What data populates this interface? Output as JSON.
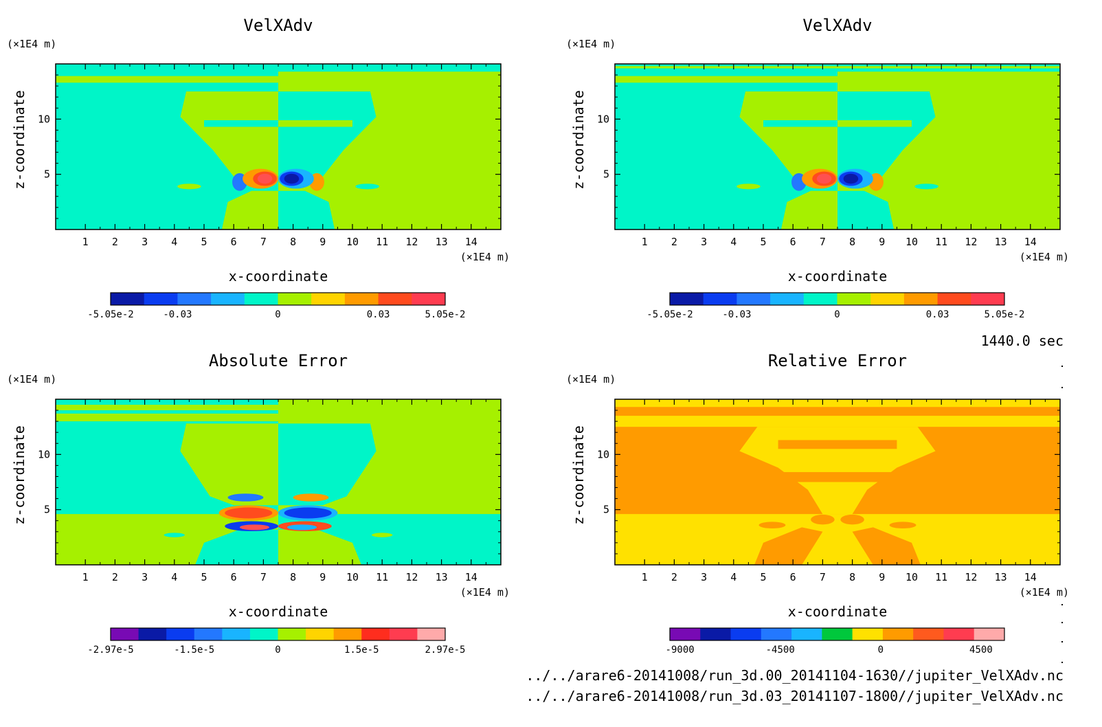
{
  "page": {
    "time_label": "1440.0 sec"
  },
  "files": [
    "../../arare6-20141008/run_3d.00_20141104-1630//jupiter_VelXAdv.nc",
    "../../arare6-20141008/run_3d.03_20141107-1800//jupiter_VelXAdv.nc"
  ],
  "chart_data": [
    {
      "type": "heatmap",
      "title": "VelXAdv",
      "xlabel": "x-coordinate",
      "ylabel": "z-coordinate",
      "x_unit": "(×1E4 m)",
      "y_unit": "(×1E4 m)",
      "xlim": [
        0,
        15
      ],
      "ylim": [
        0,
        15
      ],
      "x_ticks": [
        "1",
        "2",
        "3",
        "4",
        "5",
        "6",
        "7",
        "8",
        "9",
        "10",
        "11",
        "12",
        "13",
        "14"
      ],
      "y_ticks": [
        "5",
        "10"
      ],
      "colorbar": {
        "labels": [
          "-5.05e-2",
          "-0.03",
          "0",
          "0.03",
          "5.05e-2"
        ],
        "colors": [
          "#0a1aa6",
          "#0a3cf0",
          "#2378ff",
          "#19b4ff",
          "#00f5c8",
          "#a6f000",
          "#ffd400",
          "#ff9b00",
          "#ff4b1e",
          "#ff3c50"
        ]
      }
    },
    {
      "type": "heatmap",
      "title": "VelXAdv",
      "xlabel": "x-coordinate",
      "ylabel": "z-coordinate",
      "x_unit": "(×1E4 m)",
      "y_unit": "(×1E4 m)",
      "xlim": [
        0,
        15
      ],
      "ylim": [
        0,
        15
      ],
      "x_ticks": [
        "1",
        "2",
        "3",
        "4",
        "5",
        "6",
        "7",
        "8",
        "9",
        "10",
        "11",
        "12",
        "13",
        "14"
      ],
      "y_ticks": [
        "5",
        "10"
      ],
      "colorbar": {
        "labels": [
          "-5.05e-2",
          "-0.03",
          "0",
          "0.03",
          "5.05e-2"
        ],
        "colors": [
          "#0a1aa6",
          "#0a3cf0",
          "#2378ff",
          "#19b4ff",
          "#00f5c8",
          "#a6f000",
          "#ffd400",
          "#ff9b00",
          "#ff4b1e",
          "#ff3c50"
        ]
      }
    },
    {
      "type": "heatmap",
      "title": "Absolute Error",
      "xlabel": "x-coordinate",
      "ylabel": "z-coordinate",
      "x_unit": "(×1E4 m)",
      "y_unit": "(×1E4 m)",
      "xlim": [
        0,
        15
      ],
      "ylim": [
        0,
        15
      ],
      "x_ticks": [
        "1",
        "2",
        "3",
        "4",
        "5",
        "6",
        "7",
        "8",
        "9",
        "10",
        "11",
        "12",
        "13",
        "14"
      ],
      "y_ticks": [
        "5",
        "10"
      ],
      "colorbar": {
        "labels": [
          "-2.97e-5",
          "-1.5e-5",
          "0",
          "1.5e-5",
          "2.97e-5"
        ],
        "colors": [
          "#780ab4",
          "#0a1aa6",
          "#0a3cf0",
          "#2378ff",
          "#19b4ff",
          "#00f5c8",
          "#a6f000",
          "#ffd400",
          "#ff9b00",
          "#ff2d1e",
          "#ff3c50",
          "#ffaaaa"
        ]
      }
    },
    {
      "type": "heatmap",
      "title": "Relative Error",
      "xlabel": "x-coordinate",
      "ylabel": "z-coordinate",
      "x_unit": "(×1E4 m)",
      "y_unit": "(×1E4 m)",
      "xlim": [
        0,
        15
      ],
      "ylim": [
        0,
        15
      ],
      "x_ticks": [
        "1",
        "2",
        "3",
        "4",
        "5",
        "6",
        "7",
        "8",
        "9",
        "10",
        "11",
        "12",
        "13",
        "14"
      ],
      "y_ticks": [
        "5",
        "10"
      ],
      "colorbar": {
        "labels": [
          "-9000",
          "-4500",
          "0",
          "4500"
        ],
        "colors": [
          "#780ab4",
          "#0a1aa6",
          "#0a3cf0",
          "#2378ff",
          "#19b4ff",
          "#00c83c",
          "#ffe100",
          "#ff9b00",
          "#ff5a1e",
          "#ff3c50",
          "#ffaaaa"
        ]
      }
    }
  ]
}
